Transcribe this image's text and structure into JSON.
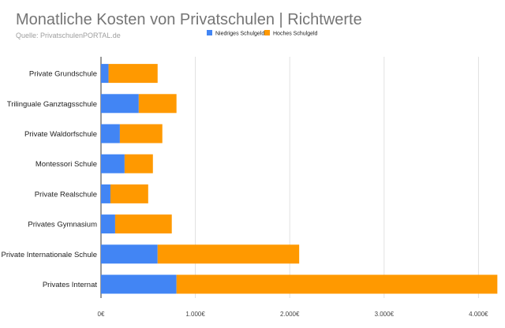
{
  "chart_data": {
    "type": "bar",
    "orientation": "horizontal",
    "stacked": true,
    "title": "Monatliche Kosten von Privatschulen | Richtwerte",
    "subtitle": "Quelle: PrivatschulenPORTAL.de",
    "categories": [
      "Private Grundschule",
      "Trilinguale Ganztagsschule",
      "Private Waldorfschule",
      "Montessori Schule",
      "Private Realschule",
      "Privates Gymnasium",
      "Private Internationale Schule",
      "Privates Internat"
    ],
    "series": [
      {
        "name": "Niedriges Schulgeld",
        "color": "#4285f4",
        "values": [
          80,
          400,
          200,
          250,
          100,
          150,
          600,
          800
        ]
      },
      {
        "name": "Hoches Schulgeld",
        "color": "#ff9900",
        "values": [
          520,
          400,
          450,
          300,
          400,
          600,
          1500,
          3400
        ]
      }
    ],
    "xlim": [
      0,
      4200
    ],
    "xticks": [
      0,
      1000,
      2000,
      3000,
      4000
    ],
    "xtick_labels": [
      "0€",
      "1.000€",
      "2.000€",
      "3.000€",
      "4.000€"
    ],
    "grid": true,
    "legend_position": "top"
  }
}
